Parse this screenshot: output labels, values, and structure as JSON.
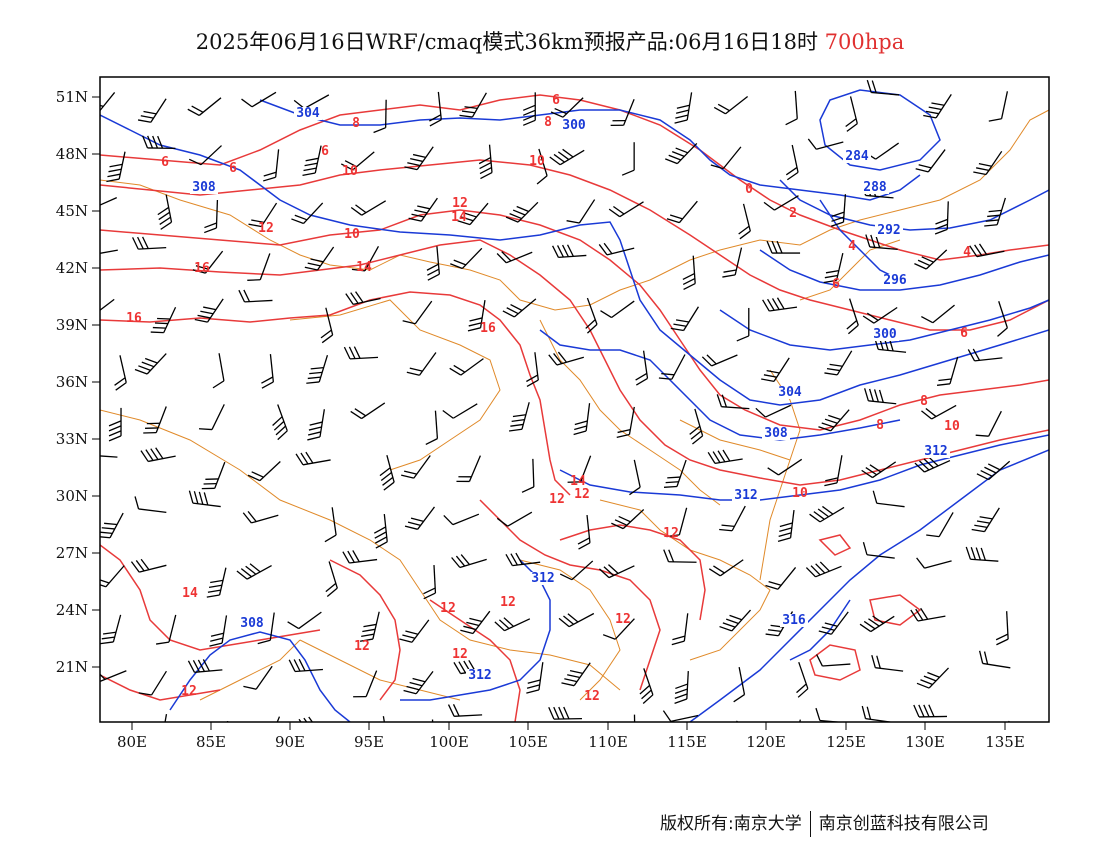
{
  "title": {
    "main": "2025年06月16日WRF/cmaq模式36km预报产品:06月16日18时",
    "level": "700hpa"
  },
  "axes": {
    "lat_labels": [
      "51N",
      "48N",
      "45N",
      "42N",
      "39N",
      "36N",
      "33N",
      "30N",
      "27N",
      "24N",
      "21N"
    ],
    "lon_labels": [
      "80E",
      "85E",
      "90E",
      "95E",
      "100E",
      "105E",
      "110E",
      "115E",
      "120E",
      "125E",
      "130E",
      "135E"
    ]
  },
  "colors": {
    "geopotential_contour": "#1a3ad6",
    "temperature_contour": "#e83a3a",
    "boundary": "#e08a2a",
    "wind_barb": "#000000"
  },
  "legend_items": {
    "geopotential_labels": [
      "304",
      "308",
      "300",
      "284",
      "288",
      "292",
      "296",
      "300",
      "304",
      "308",
      "312",
      "312",
      "316",
      "308",
      "312",
      "312"
    ],
    "temperature_labels": [
      "6",
      "6",
      "8",
      "6",
      "6",
      "8",
      "10",
      "10",
      "12",
      "14",
      "12",
      "10",
      "14",
      "16",
      "16",
      "16",
      "0",
      "2",
      "4",
      "4",
      "6",
      "6",
      "8",
      "8",
      "10",
      "10",
      "14",
      "12",
      "12",
      "12",
      "12",
      "12",
      "14",
      "12",
      "12",
      "12",
      "12",
      "12"
    ]
  },
  "credit": {
    "owner": "版权所有:南京大学",
    "company": "南京创蓝科技有限公司"
  }
}
